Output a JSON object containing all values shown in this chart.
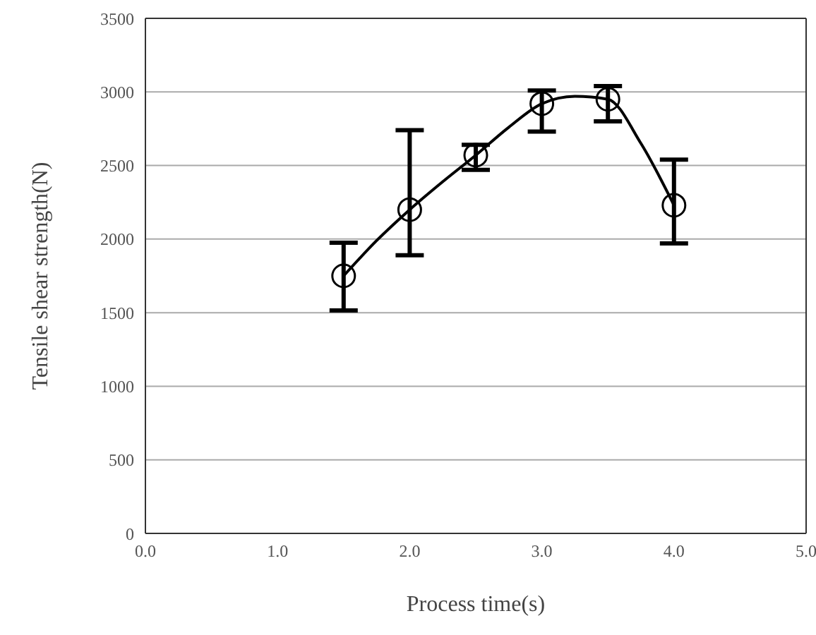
{
  "chart_data": {
    "type": "scatter",
    "xlabel": "Process time(s)",
    "ylabel": "Tensile shear strength(N)",
    "xlim": [
      0,
      5
    ],
    "xticks": [
      {
        "value": 0,
        "label": "0.0"
      },
      {
        "value": 1,
        "label": "1.0"
      },
      {
        "value": 2,
        "label": "2.0"
      },
      {
        "value": 3,
        "label": "3.0"
      },
      {
        "value": 4,
        "label": "4.0"
      },
      {
        "value": 5,
        "label": "5.0"
      }
    ],
    "ylim": [
      0,
      3500
    ],
    "yticks": [
      0,
      500,
      1000,
      1500,
      2000,
      2500,
      3000,
      3500
    ],
    "grid": "y",
    "legend": false,
    "series": [
      {
        "color": "#000000",
        "marker": "circle",
        "x": [
          1.5,
          2.0,
          2.5,
          3.0,
          3.5,
          4.0
        ],
        "values": [
          1750,
          2200,
          2570,
          2920,
          2950,
          2230
        ],
        "errors": [
          [
            1515,
            1975
          ],
          [
            1890,
            2740
          ],
          [
            2470,
            2640
          ],
          [
            2730,
            3010
          ],
          [
            2800,
            3040
          ],
          [
            1970,
            2540
          ]
        ]
      },
      {
        "type": "line",
        "color": "#000000",
        "marker": "none",
        "line_style": "solid",
        "x": [
          1.5,
          1.75,
          2.0,
          2.25,
          2.5,
          2.75,
          3.0,
          3.25,
          3.5,
          3.75,
          4.0
        ],
        "values": [
          1750,
          1990,
          2200,
          2390,
          2570,
          2760,
          2920,
          2970,
          2950,
          2650,
          2230
        ]
      }
    ]
  }
}
